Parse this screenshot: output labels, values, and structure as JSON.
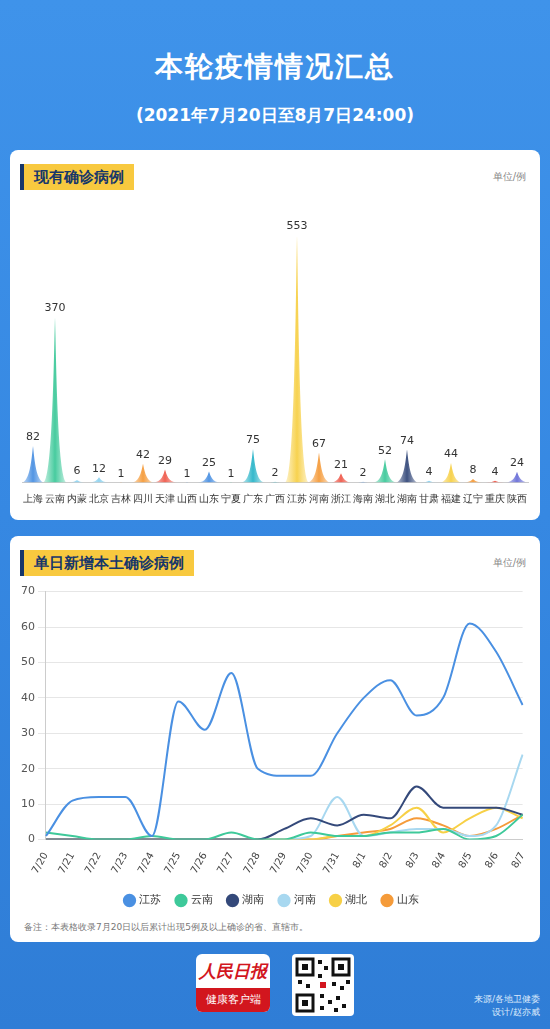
{
  "title": "本轮疫情情况汇总",
  "subtitle": "(2021年7月20日至8月7日24:00)",
  "chart_data": [
    {
      "type": "bar",
      "title": "现有确诊病例",
      "ylabel": "单位/例",
      "categories": [
        "上海",
        "云南",
        "内蒙",
        "北京",
        "吉林",
        "四川",
        "天津",
        "山西",
        "山东",
        "宁夏",
        "广东",
        "广西",
        "江苏",
        "河南",
        "浙江",
        "海南",
        "湖北",
        "湖南",
        "甘肃",
        "福建",
        "辽宁",
        "重庆",
        "陕西"
      ],
      "values": [
        82,
        370,
        6,
        12,
        1,
        42,
        29,
        1,
        25,
        1,
        75,
        2,
        553,
        67,
        21,
        2,
        52,
        74,
        4,
        44,
        8,
        4,
        24
      ],
      "colors": [
        "#4a90e2",
        "#3ec99a",
        "#8fd3f0",
        "#8fd3f0",
        "#f59b3a",
        "#f59b3a",
        "#ef5b4c",
        "#4a90e2",
        "#4a90e2",
        "#3ec99a",
        "#2bb5c9",
        "#2bb5c9",
        "#f7d046",
        "#f59b3a",
        "#ef5b4c",
        "#4a90e2",
        "#3ec99a",
        "#34497a",
        "#8fd3f0",
        "#f7d046",
        "#f59b3a",
        "#ef5b4c",
        "#6a6fd8"
      ],
      "ylim": [
        0,
        600
      ],
      "grid": false,
      "data_labels": true,
      "tick_labels": "x"
    },
    {
      "type": "line",
      "title": "单日新增本土确诊病例",
      "ylabel": "单位/例",
      "categories": [
        "7/20",
        "7/21",
        "7/22",
        "7/23",
        "7/24",
        "7/25",
        "7/26",
        "7/27",
        "7/28",
        "7/29",
        "7/30",
        "7/31",
        "8/1",
        "8/2",
        "8/3",
        "8/4",
        "8/5",
        "8/6",
        "8/7"
      ],
      "series": [
        {
          "name": "江苏",
          "color": "#4a90e2",
          "values": [
            1,
            11,
            12,
            12,
            1,
            39,
            31,
            47,
            20,
            18,
            18,
            30,
            40,
            45,
            35,
            40,
            61,
            53,
            38
          ]
        },
        {
          "name": "云南",
          "color": "#3ec99a",
          "values": [
            2,
            1,
            0,
            0,
            1,
            0,
            0,
            2,
            0,
            0,
            2,
            1,
            1,
            2,
            2,
            3,
            0,
            1,
            7
          ]
        },
        {
          "name": "湖南",
          "color": "#34497a",
          "values": [
            0,
            0,
            0,
            0,
            0,
            0,
            0,
            0,
            0,
            3,
            6,
            4,
            7,
            6,
            15,
            9,
            9,
            9,
            7
          ]
        },
        {
          "name": "河南",
          "color": "#a8d8f0",
          "values": [
            0,
            0,
            0,
            0,
            0,
            0,
            0,
            0,
            0,
            0,
            1,
            12,
            1,
            2,
            3,
            3,
            1,
            4,
            24
          ]
        },
        {
          "name": "湖北",
          "color": "#f7d046",
          "values": [
            0,
            0,
            0,
            0,
            0,
            0,
            0,
            0,
            0,
            0,
            0,
            1,
            1,
            4,
            9,
            2,
            6,
            9,
            6
          ]
        },
        {
          "name": "山东",
          "color": "#f59b3a",
          "values": [
            0,
            0,
            0,
            0,
            0,
            0,
            0,
            0,
            0,
            0,
            0,
            1,
            2,
            3,
            6,
            4,
            1,
            3,
            7
          ]
        }
      ],
      "ylim": [
        0,
        70
      ],
      "yticks": [
        0,
        10,
        20,
        30,
        40,
        50,
        60,
        70
      ],
      "grid": true,
      "legend": "bottom",
      "marker": "none"
    }
  ],
  "note": "备注：本表格收录7月20日以后累计出现5例及以上确诊的省、直辖市。",
  "footer": {
    "logo": "人民日报",
    "logo_sub": "健康客户端",
    "source": "来源/各地卫健委",
    "design": "设计/赵亦威"
  }
}
